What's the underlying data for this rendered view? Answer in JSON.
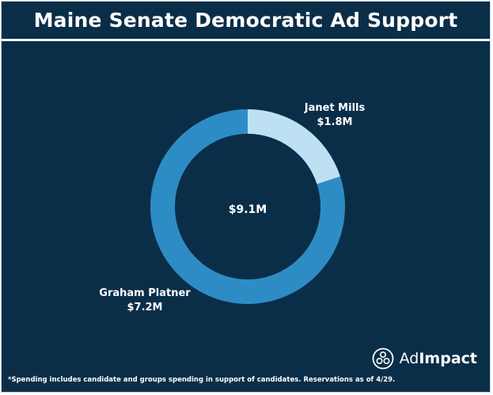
{
  "header": {
    "title": "Maine Senate Democratic Ad Support"
  },
  "chart_data": {
    "type": "pie",
    "style": "donut",
    "center_label": "$9.1M",
    "slices": [
      {
        "name": "Janet Mills",
        "value_label": "$1.8M",
        "value": 1.8,
        "color": "#bde1f2"
      },
      {
        "name": "Graham Platner",
        "value_label": "$7.2M",
        "value": 7.2,
        "color": "#2e8cc4"
      }
    ],
    "total": 9.1
  },
  "footnote": "*Spending includes candidate and groups spending in support of candidates. Reservations as of 4/29.",
  "brand": {
    "prefix": "Ad",
    "suffix": "Impact",
    "icon": "adimpact-logo-icon"
  }
}
